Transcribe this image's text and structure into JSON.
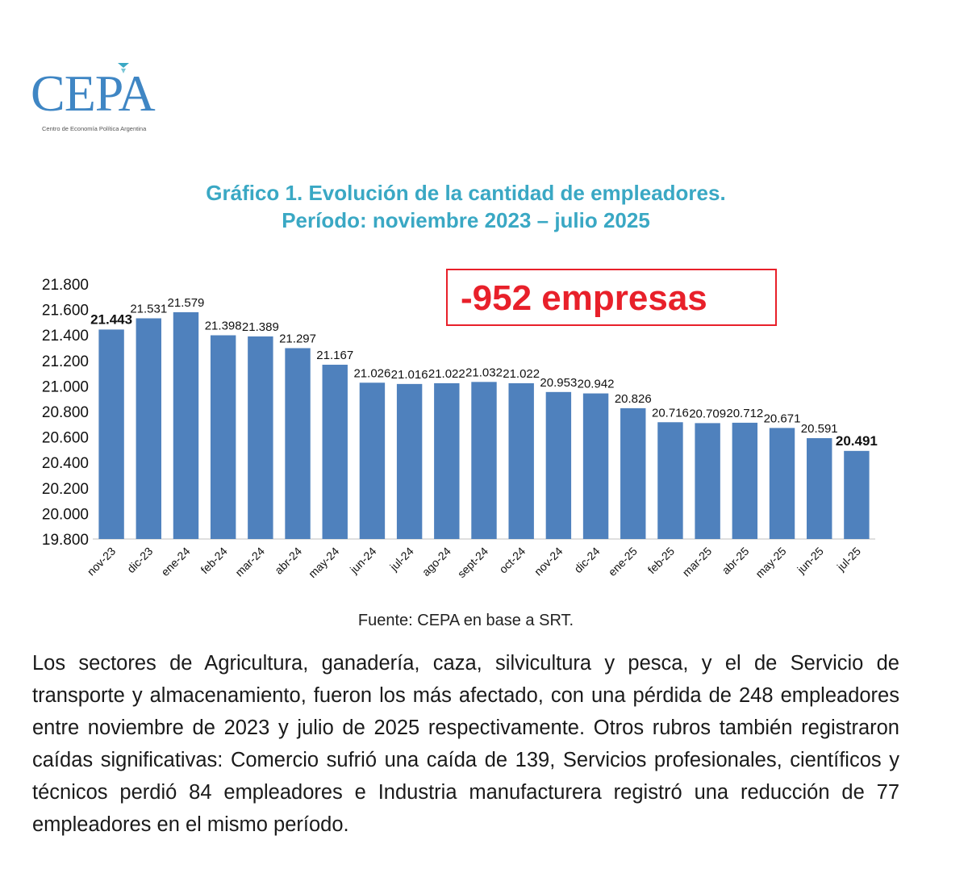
{
  "logo": {
    "name": "CEPA",
    "subtitle": "Centro de Economía Política Argentina"
  },
  "title_line1": "Gráfico 1. Evolución de la cantidad de empleadores.",
  "title_line2": "Período: noviembre 2023 – julio 2025",
  "callout": "-952 empresas",
  "source": "Fuente: CEPA en base a SRT.",
  "paragraph": "Los sectores de Agricultura, ganadería, caza, silvicultura y pesca, y el de Servicio de transporte y almacenamiento, fueron los más afectado, con una pérdida de 248 empleadores entre noviembre de 2023 y julio de 2025 respectivamente. Otros rubros también registraron caídas significativas: Comercio sufrió una caída de 139, Servicios profesionales, científicos y técnicos perdió 84 empleadores e Industria manufacturera registró una reducción de 77 empleadores en el mismo período.",
  "colors": {
    "bar": "#4f81bd",
    "title": "#3aa8c4",
    "callout": "#e8202a",
    "logo": "#3f86c4"
  },
  "chart_data": {
    "type": "bar",
    "categories": [
      "nov-23",
      "dic-23",
      "ene-24",
      "feb-24",
      "mar-24",
      "abr-24",
      "may-24",
      "jun-24",
      "jul-24",
      "ago-24",
      "sept-24",
      "oct-24",
      "nov-24",
      "dic-24",
      "ene-25",
      "feb-25",
      "mar-25",
      "abr-25",
      "may-25",
      "jun-25",
      "jul-25"
    ],
    "values": [
      21443,
      21531,
      21579,
      21398,
      21389,
      21297,
      21167,
      21026,
      21016,
      21022,
      21032,
      21022,
      20953,
      20942,
      20826,
      20716,
      20709,
      20712,
      20671,
      20591,
      20491
    ],
    "value_labels": [
      "21.443",
      "21.531",
      "21.579",
      "21.398",
      "21.389",
      "21.297",
      "21.167",
      "21.026",
      "21.016",
      "21.022",
      "21.032",
      "21.022",
      "20.953",
      "20.942",
      "20.826",
      "20.716",
      "20.709",
      "20.712",
      "20.671",
      "20.591",
      "20.491"
    ],
    "bold_labels": [
      0,
      20
    ],
    "ylim": [
      19800,
      21800
    ],
    "yticks": [
      19800,
      20000,
      20200,
      20400,
      20600,
      20800,
      21000,
      21200,
      21400,
      21600,
      21800
    ],
    "ytick_labels": [
      "19.800",
      "20.000",
      "20.200",
      "20.400",
      "20.600",
      "20.800",
      "21.000",
      "21.200",
      "21.400",
      "21.600",
      "21.800"
    ],
    "grid": false,
    "legend": "none"
  }
}
